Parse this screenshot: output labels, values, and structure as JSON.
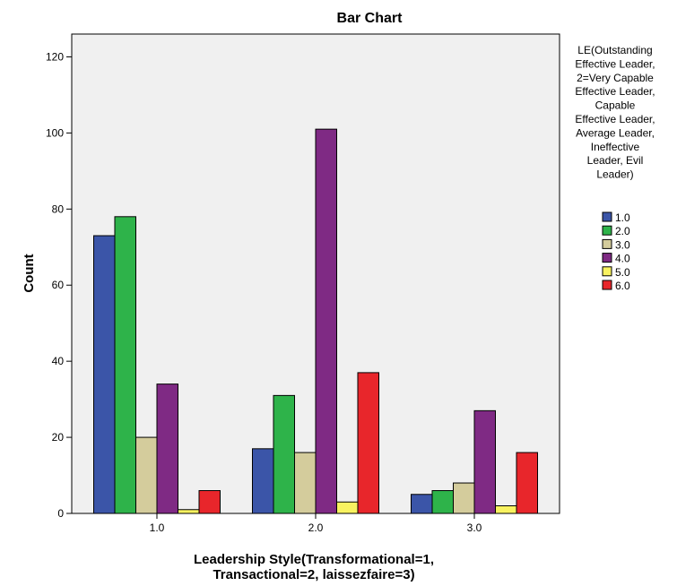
{
  "chart_data": {
    "type": "bar",
    "title": "Bar Chart",
    "xlabel": [
      "Leadership Style(Transformational=1,",
      "Transactional=2, laissezfaire=3)"
    ],
    "ylabel": "Count",
    "categories": [
      "1.0",
      "2.0",
      "3.0"
    ],
    "ylim": [
      0,
      126
    ],
    "yticks": [
      0,
      20,
      40,
      60,
      80,
      100,
      120
    ],
    "legend": {
      "title": [
        "LE(Outstanding",
        "Effective Leader,",
        "2=Very Capable",
        "Effective Leader,",
        "Capable",
        "Effective Leader,",
        "Average Leader,",
        "Ineffective",
        "Leader, Evil",
        "Leader)"
      ],
      "placement": "right"
    },
    "series": [
      {
        "name": "1.0",
        "color": "#3b55a8",
        "values": [
          73,
          17,
          5
        ]
      },
      {
        "name": "2.0",
        "color": "#2eb34a",
        "values": [
          78,
          31,
          6
        ]
      },
      {
        "name": "3.0",
        "color": "#d4cc9c",
        "values": [
          20,
          16,
          8
        ]
      },
      {
        "name": "4.0",
        "color": "#7f2a84",
        "values": [
          34,
          101,
          27
        ]
      },
      {
        "name": "5.0",
        "color": "#f8f260",
        "values": [
          1,
          3,
          2
        ]
      },
      {
        "name": "6.0",
        "color": "#e8262b",
        "values": [
          6,
          37,
          16
        ]
      }
    ],
    "plot_background": "#f0f0f0"
  }
}
